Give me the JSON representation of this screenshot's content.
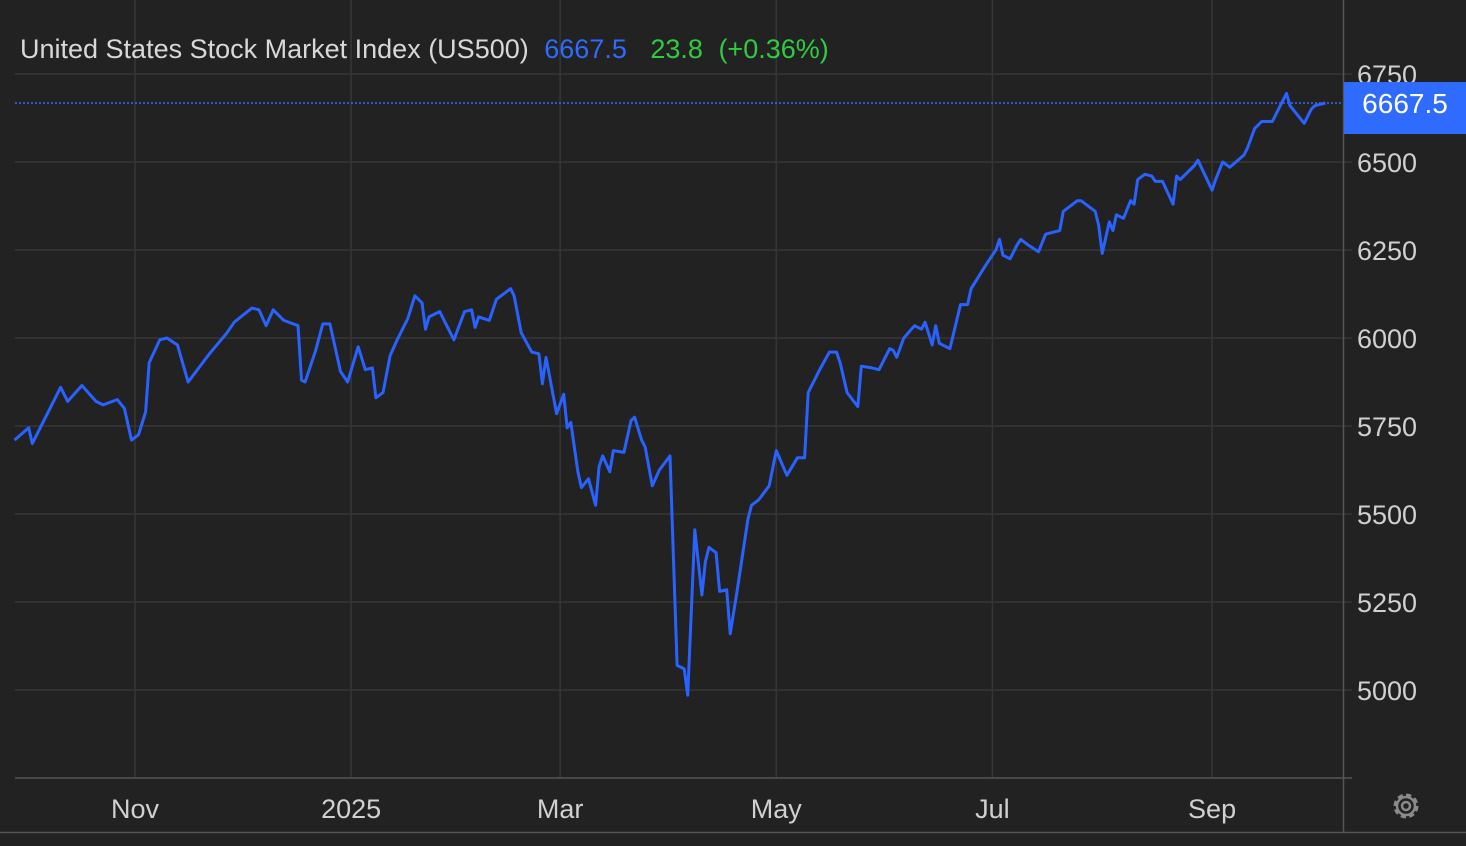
{
  "chart_data": {
    "type": "line",
    "title": "United States Stock Market Index (US500)",
    "last_price": "6667.5",
    "change": "23.8",
    "change_pct": "(+0.36%)",
    "price_tag": "6667.5",
    "x_ticks": [
      {
        "label": "Nov",
        "date": "2024-11-01"
      },
      {
        "label": "2025",
        "date": "2025-01-01"
      },
      {
        "label": "Mar",
        "date": "2025-03-01"
      },
      {
        "label": "May",
        "date": "2025-05-01"
      },
      {
        "label": "Jul",
        "date": "2025-07-01"
      },
      {
        "label": "Sep",
        "date": "2025-09-01"
      }
    ],
    "y_ticks": [
      5000,
      5250,
      5500,
      5750,
      6000,
      6250,
      6500,
      6750
    ],
    "ylim": [
      4750,
      6750
    ],
    "grid": true,
    "colors": {
      "line": "#2962ff",
      "price": "#2f6bff",
      "change": "#2ecc40",
      "title": "#d8d8d8",
      "background": "#222222",
      "grid": "#363636"
    },
    "icons": {
      "settings": "gear-icon"
    },
    "series": [
      {
        "x": [
          "2024-09-28",
          "2024-10-02",
          "2024-10-03",
          "2024-10-08",
          "2024-10-11",
          "2024-10-13",
          "2024-10-17",
          "2024-10-21",
          "2024-10-23",
          "2024-10-27",
          "2024-10-29",
          "2024-10-31",
          "2024-11-02",
          "2024-11-04",
          "2024-11-05",
          "2024-11-08",
          "2024-11-10",
          "2024-11-13",
          "2024-11-16",
          "2024-11-19",
          "2024-11-22",
          "2024-11-27",
          "2024-11-29",
          "2024-12-04",
          "2024-12-06",
          "2024-12-08",
          "2024-12-10",
          "2024-12-13",
          "2024-12-17",
          "2024-12-18",
          "2024-12-19",
          "2024-12-22",
          "2024-12-24",
          "2024-12-26",
          "2024-12-29",
          "2024-12-31",
          "2025-01-03",
          "2025-01-05",
          "2025-01-07",
          "2025-01-08",
          "2025-01-10",
          "2025-01-12",
          "2025-01-14",
          "2025-01-17",
          "2025-01-19",
          "2025-01-21",
          "2025-01-22",
          "2025-01-23",
          "2025-01-26",
          "2025-01-30",
          "2025-02-02",
          "2025-02-04",
          "2025-02-05",
          "2025-02-06",
          "2025-02-09",
          "2025-02-11",
          "2025-02-15",
          "2025-02-16",
          "2025-02-18",
          "2025-02-21",
          "2025-02-23",
          "2025-02-24",
          "2025-02-25",
          "2025-02-28",
          "2025-03-02",
          "2025-03-03",
          "2025-03-04",
          "2025-03-06",
          "2025-03-07",
          "2025-03-09",
          "2025-03-11",
          "2025-03-12",
          "2025-03-13",
          "2025-03-15",
          "2025-03-16",
          "2025-03-19",
          "2025-03-21",
          "2025-03-22",
          "2025-03-24",
          "2025-03-25",
          "2025-03-27",
          "2025-03-29",
          "2025-04-01",
          "2025-04-02",
          "2025-04-03",
          "2025-04-05",
          "2025-04-06",
          "2025-04-08",
          "2025-04-10",
          "2025-04-11",
          "2025-04-12",
          "2025-04-14",
          "2025-04-15",
          "2025-04-17",
          "2025-04-18",
          "2025-04-20",
          "2025-04-23",
          "2025-04-24",
          "2025-04-26",
          "2025-04-29",
          "2025-05-01",
          "2025-05-04",
          "2025-05-07",
          "2025-05-09",
          "2025-05-10",
          "2025-05-13",
          "2025-05-16",
          "2025-05-18",
          "2025-05-19",
          "2025-05-21",
          "2025-05-24",
          "2025-05-25",
          "2025-05-28",
          "2025-05-30",
          "2025-06-02",
          "2025-06-03",
          "2025-06-04",
          "2025-06-06",
          "2025-06-09",
          "2025-06-11",
          "2025-06-12",
          "2025-06-14",
          "2025-06-15",
          "2025-06-16",
          "2025-06-19",
          "2025-06-22",
          "2025-06-24",
          "2025-06-25",
          "2025-06-29",
          "2025-07-02",
          "2025-07-03",
          "2025-07-04",
          "2025-07-06",
          "2025-07-08",
          "2025-07-09",
          "2025-07-11",
          "2025-07-14",
          "2025-07-16",
          "2025-07-20",
          "2025-07-21",
          "2025-07-25",
          "2025-07-26",
          "2025-07-30",
          "2025-07-31",
          "2025-08-01",
          "2025-08-03",
          "2025-08-04",
          "2025-08-05",
          "2025-08-07",
          "2025-08-09",
          "2025-08-10",
          "2025-08-11",
          "2025-08-13",
          "2025-08-15",
          "2025-08-16",
          "2025-08-18",
          "2025-08-21",
          "2025-08-22",
          "2025-08-23",
          "2025-08-27",
          "2025-08-28",
          "2025-09-01",
          "2025-09-02",
          "2025-09-04",
          "2025-09-06",
          "2025-09-10",
          "2025-09-11",
          "2025-09-13",
          "2025-09-15",
          "2025-09-18",
          "2025-09-20",
          "2025-09-22",
          "2025-09-23",
          "2025-09-27",
          "2025-09-29",
          "2025-09-30",
          "2025-10-03"
        ],
        "values": [
          5710,
          5745,
          5700,
          5800,
          5860,
          5820,
          5865,
          5820,
          5810,
          5825,
          5800,
          5710,
          5725,
          5790,
          5930,
          5995,
          6000,
          5980,
          5875,
          5915,
          5955,
          6015,
          6045,
          6085,
          6080,
          6035,
          6080,
          6050,
          6035,
          5880,
          5875,
          5965,
          6040,
          6040,
          5905,
          5875,
          5975,
          5910,
          5915,
          5830,
          5845,
          5950,
          5995,
          6055,
          6120,
          6100,
          6025,
          6060,
          6075,
          5995,
          6075,
          6080,
          6030,
          6060,
          6050,
          6110,
          6140,
          6120,
          6015,
          5960,
          5955,
          5870,
          5945,
          5785,
          5840,
          5745,
          5760,
          5620,
          5575,
          5600,
          5525,
          5635,
          5665,
          5620,
          5680,
          5675,
          5765,
          5775,
          5710,
          5690,
          5580,
          5625,
          5665,
          5370,
          5070,
          5060,
          4985,
          5455,
          5270,
          5365,
          5405,
          5390,
          5280,
          5285,
          5160,
          5285,
          5485,
          5525,
          5540,
          5580,
          5680,
          5610,
          5660,
          5660,
          5845,
          5905,
          5960,
          5960,
          5930,
          5845,
          5805,
          5920,
          5915,
          5910,
          5970,
          5965,
          5945,
          6000,
          6035,
          6025,
          6045,
          5980,
          6035,
          5985,
          5970,
          6095,
          6095,
          6140,
          6205,
          6250,
          6280,
          6235,
          6225,
          6265,
          6280,
          6265,
          6245,
          6295,
          6305,
          6360,
          6390,
          6390,
          6360,
          6320,
          6240,
          6330,
          6305,
          6350,
          6340,
          6390,
          6380,
          6450,
          6465,
          6460,
          6445,
          6445,
          6380,
          6460,
          6450,
          6490,
          6505,
          6420,
          6450,
          6500,
          6485,
          6520,
          6540,
          6595,
          6615,
          6615,
          6655,
          6695,
          6660,
          6610,
          6650,
          6660,
          6667.5
        ]
      }
    ]
  }
}
